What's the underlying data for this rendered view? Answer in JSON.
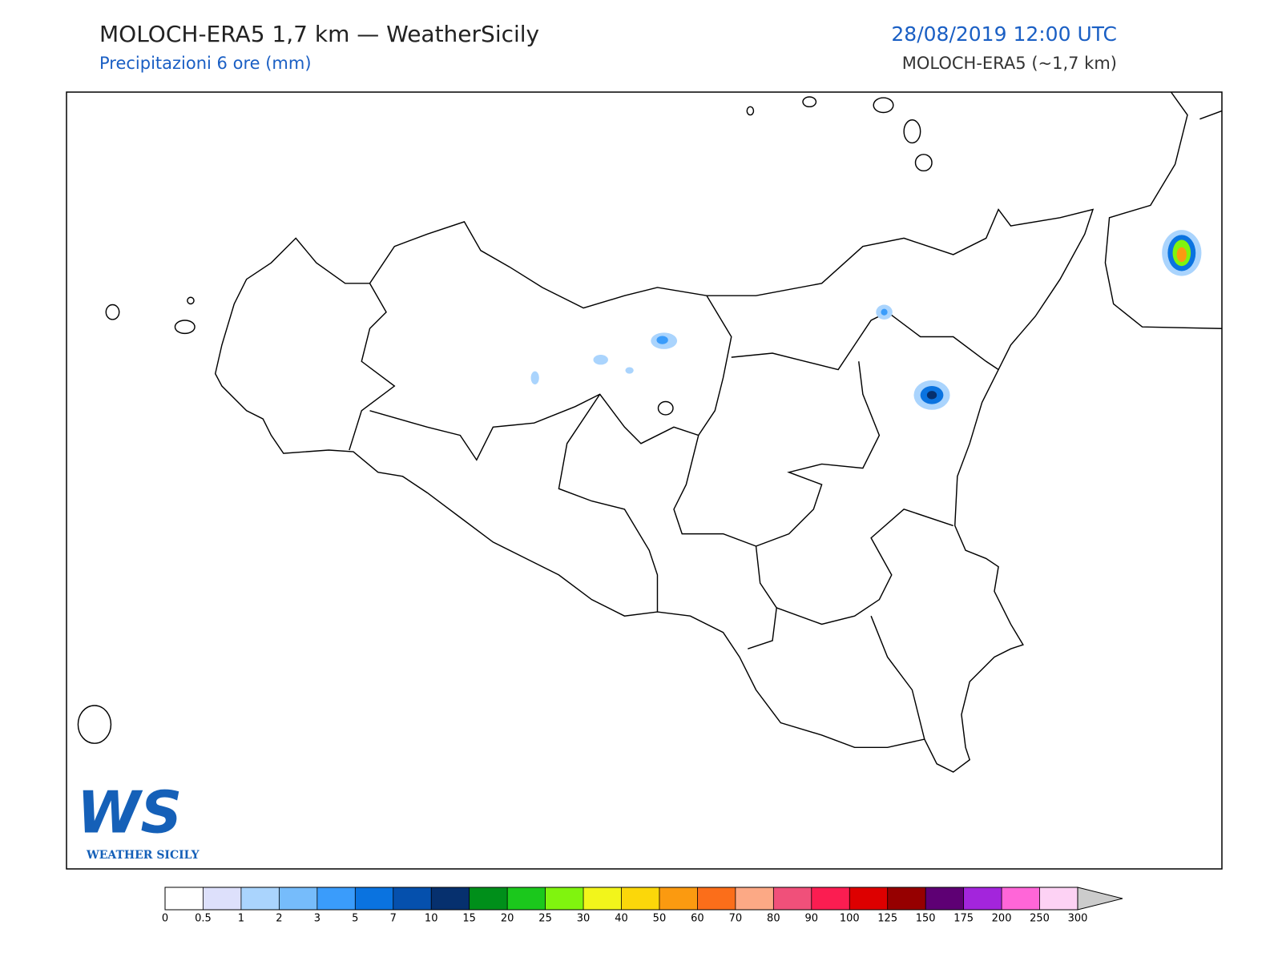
{
  "header": {
    "title": "MOLOCH-ERA5 1,7 km — WeatherSicily",
    "subtitle": "Precipitazioni 6 ore (mm)",
    "datetime": "28/08/2019 12:00 UTC",
    "model": "MOLOCH-ERA5 (~1,7 km)"
  },
  "logo": {
    "mark": "WS",
    "name": "WEATHER SICILY"
  },
  "colorbar": {
    "ticks": [
      0,
      0.5,
      1,
      2,
      3,
      5,
      7,
      10,
      15,
      20,
      25,
      30,
      40,
      50,
      60,
      70,
      80,
      90,
      100,
      125,
      150,
      175,
      200,
      250,
      300
    ],
    "colors": [
      "#ffffff",
      "#dde0fb",
      "#aad4fd",
      "#76bcfb",
      "#3a9cfb",
      "#0a73e0",
      "#0550ad",
      "#06306e",
      "#008f1a",
      "#1bc81c",
      "#80f40e",
      "#f2f51b",
      "#fbd70a",
      "#fb9a10",
      "#fb6e1a",
      "#fca985",
      "#f0507a",
      "#fb1d51",
      "#dd0000",
      "#960000",
      "#5e0074",
      "#a325dc",
      "#ff66d8",
      "#fdd2f4"
    ],
    "extend_color": "#cccccc"
  }
}
